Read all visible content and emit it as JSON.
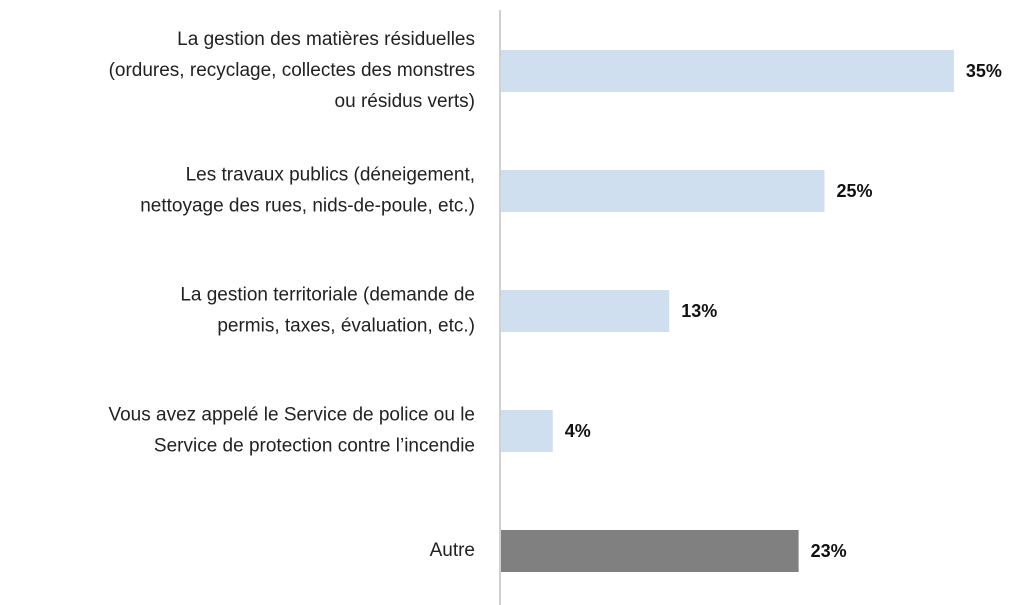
{
  "chart_data": {
    "type": "hbar",
    "categories": [
      [
        "La gestion des matières résiduelles",
        "(ordures, recyclage, collectes des monstres",
        "ou résidus verts)"
      ],
      [
        "Les travaux publics (déneigement,",
        "nettoyage des rues, nids-de-poule, etc.)"
      ],
      [
        "La gestion territoriale (demande de",
        "permis, taxes, évaluation, etc.)"
      ],
      [
        "Vous avez appelé le Service de police ou le",
        "Service de protection contre l’incendie"
      ],
      [
        "Autre"
      ]
    ],
    "values": [
      35,
      25,
      13,
      4,
      23
    ],
    "value_labels": [
      "35%",
      "25%",
      "13%",
      "4%",
      "23%"
    ],
    "colors": [
      "#d0dff0",
      "#d0dff0",
      "#d0dff0",
      "#d0dff0",
      "#808080"
    ]
  }
}
